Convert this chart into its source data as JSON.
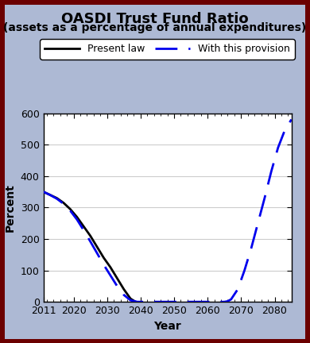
{
  "title": "OASDI Trust Fund Ratio",
  "subtitle": "(assets as a percentage of annual expenditures)",
  "xlabel": "Year",
  "ylabel": "Percent",
  "background_color": "#adb9d4",
  "plot_bg_color": "#ffffff",
  "border_color": "#6b0000",
  "ylim": [
    0,
    600
  ],
  "yticks": [
    0,
    100,
    200,
    300,
    400,
    500,
    600
  ],
  "xlim": [
    2011,
    2085
  ],
  "xticks": [
    2011,
    2020,
    2030,
    2040,
    2050,
    2060,
    2070,
    2080
  ],
  "present_law": {
    "x": [
      2011,
      2013,
      2015,
      2017,
      2019,
      2021,
      2023,
      2025,
      2027,
      2029,
      2031,
      2033,
      2035,
      2037,
      2038.5
    ],
    "y": [
      350,
      340,
      330,
      315,
      295,
      270,
      240,
      210,
      175,
      140,
      110,
      75,
      40,
      10,
      0
    ],
    "color": "#000000",
    "linewidth": 2.0,
    "label": "Present law"
  },
  "provision": {
    "x": [
      2011,
      2013,
      2015,
      2017,
      2019,
      2021,
      2023,
      2025,
      2027,
      2029,
      2031,
      2033,
      2035,
      2037,
      2039,
      2041,
      2043,
      2045,
      2047,
      2049,
      2051,
      2053,
      2055,
      2057,
      2059,
      2061,
      2063,
      2065,
      2066,
      2067,
      2069,
      2071,
      2073,
      2075,
      2077,
      2079,
      2081,
      2083,
      2085
    ],
    "y": [
      350,
      340,
      328,
      312,
      290,
      262,
      228,
      192,
      155,
      118,
      84,
      50,
      22,
      5,
      0,
      0,
      0,
      0,
      0,
      0,
      0,
      0,
      0,
      0,
      0,
      0,
      0,
      0,
      2,
      8,
      40,
      100,
      170,
      250,
      330,
      415,
      490,
      545,
      580
    ],
    "color": "#0000ee",
    "linewidth": 2.0,
    "label": "With this provision",
    "dashes": [
      10,
      5
    ]
  },
  "legend_fontsize": 9,
  "title_fontsize": 13,
  "subtitle_fontsize": 10,
  "axis_label_fontsize": 10,
  "tick_fontsize": 9
}
